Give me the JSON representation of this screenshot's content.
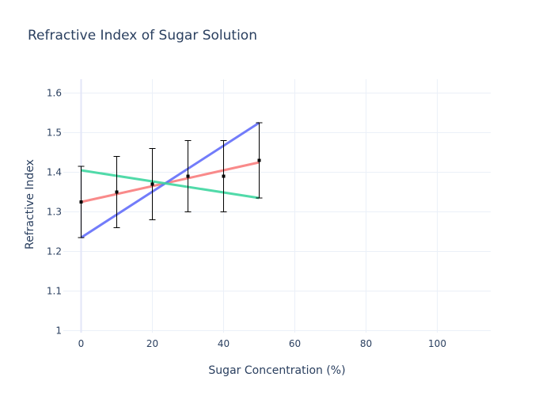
{
  "chart_data": {
    "type": "scatter",
    "title": "Refractive Index of Sugar Solution",
    "xlabel": "Sugar Concentration (%)",
    "ylabel": "Refractive Index",
    "xlim": [
      -5,
      115
    ],
    "ylim": [
      0.995,
      1.635
    ],
    "x_ticks": [
      0,
      20,
      40,
      60,
      80,
      100
    ],
    "y_ticks": [
      1,
      1.1,
      1.2,
      1.3,
      1.4,
      1.5,
      1.6
    ],
    "grid": true,
    "legend": "none",
    "series": [
      {
        "mode": "markers+error_bars",
        "color": "#000000",
        "x": [
          0,
          10,
          20,
          30,
          40,
          50
        ],
        "y": [
          1.325,
          1.35,
          1.37,
          1.39,
          1.39,
          1.43
        ],
        "error_y": [
          0.09,
          0.09,
          0.09,
          0.09,
          0.09,
          0.095
        ]
      },
      {
        "mode": "line",
        "color": "#f87d7d",
        "x": [
          0,
          50
        ],
        "y": [
          1.325,
          1.425
        ]
      },
      {
        "mode": "line",
        "color": "#636efa",
        "x": [
          0,
          50
        ],
        "y": [
          1.235,
          1.525
        ]
      },
      {
        "mode": "line",
        "color": "#3ed6a0",
        "x": [
          0,
          50
        ],
        "y": [
          1.405,
          1.335
        ]
      }
    ]
  }
}
